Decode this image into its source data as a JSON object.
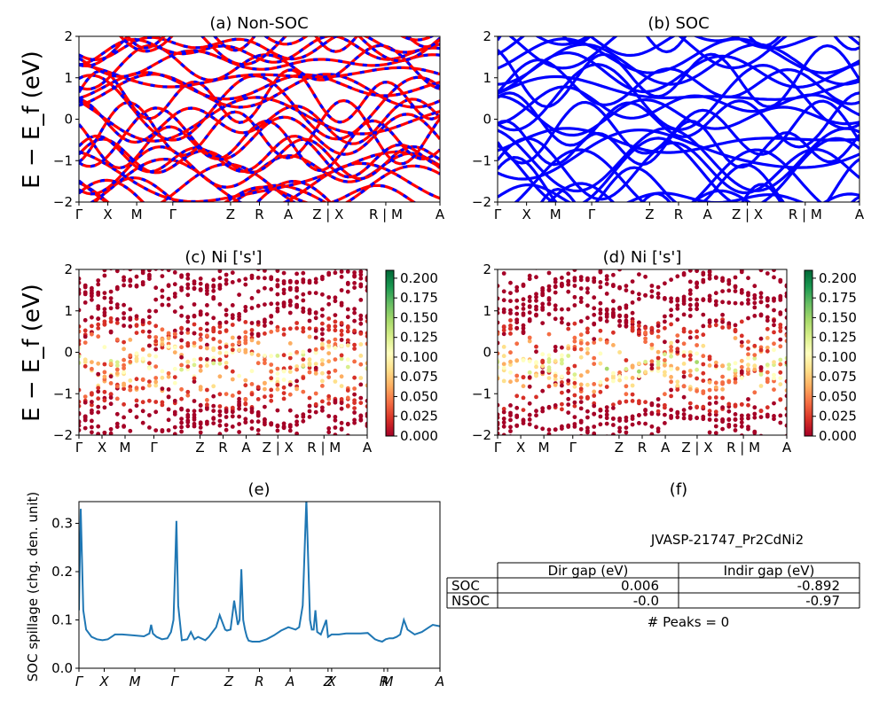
{
  "chart_data": [
    {
      "type": "line",
      "title": "(a) Non-SOC",
      "ylabel": "E − E_f (eV)",
      "ylim": [
        -2,
        2
      ],
      "yticks": [
        "−2",
        "−1",
        "0",
        "1",
        "2"
      ],
      "xtick_labels": [
        "Γ",
        "X",
        "M",
        "Γ",
        "Z",
        "R",
        "A",
        "Z | X",
        "R | M",
        "A"
      ],
      "xtick_positions": [
        0.0,
        0.08,
        0.16,
        0.26,
        0.42,
        0.5,
        0.58,
        0.69,
        0.85,
        1.0
      ],
      "series": [
        {
          "color": "#ff0000",
          "style": "solid"
        },
        {
          "color": "#0000ff",
          "style": "dashed"
        }
      ]
    },
    {
      "type": "line",
      "title": "(b) SOC",
      "ylim": [
        -2,
        2
      ],
      "yticks": [
        "−2",
        "−1",
        "0",
        "1",
        "2"
      ],
      "xtick_labels": [
        "Γ",
        "X",
        "M",
        "Γ",
        "Z",
        "R",
        "A",
        "Z | X",
        "R | M",
        "A"
      ],
      "xtick_positions": [
        0.0,
        0.08,
        0.16,
        0.26,
        0.42,
        0.5,
        0.58,
        0.69,
        0.85,
        1.0
      ],
      "series": [
        {
          "color": "#0000ff",
          "style": "solid"
        }
      ]
    },
    {
      "type": "scatter",
      "title": "(c)  Ni ['s']",
      "ylabel": "E − E_f (eV)",
      "ylim": [
        -2,
        2
      ],
      "yticks": [
        "−2",
        "−1",
        "0",
        "1",
        "2"
      ],
      "xtick_labels": [
        "Γ",
        "X",
        "M",
        "Γ",
        "Z",
        "R",
        "A",
        "Z | X",
        "R | M",
        "A"
      ],
      "xtick_positions": [
        0.0,
        0.08,
        0.16,
        0.26,
        0.42,
        0.5,
        0.58,
        0.69,
        0.85,
        1.0
      ],
      "colorbar": {
        "min": 0.0,
        "max": 0.2,
        "ticks": [
          "0.000",
          "0.025",
          "0.050",
          "0.075",
          "0.100",
          "0.125",
          "0.150",
          "0.175",
          "0.200"
        ],
        "colormap": "RdYlGn"
      }
    },
    {
      "type": "scatter",
      "title": "(d) Ni ['s']",
      "ylim": [
        -2,
        2
      ],
      "yticks": [
        "−2",
        "−1",
        "0",
        "1",
        "2"
      ],
      "xtick_labels": [
        "Γ",
        "X",
        "M",
        "Γ",
        "Z",
        "R",
        "A",
        "Z | X",
        "R | M",
        "A"
      ],
      "xtick_positions": [
        0.0,
        0.08,
        0.16,
        0.26,
        0.42,
        0.5,
        0.58,
        0.69,
        0.85,
        1.0
      ],
      "colorbar": {
        "min": 0.0,
        "max": 0.2,
        "ticks": [
          "0.000",
          "0.025",
          "0.050",
          "0.075",
          "0.100",
          "0.125",
          "0.150",
          "0.175",
          "0.200"
        ],
        "colormap": "RdYlGn"
      }
    },
    {
      "type": "line",
      "title": "(e)",
      "ylabel": "SOC spillage (chg. den. unit)",
      "ylim": [
        0.0,
        0.345
      ],
      "yticks": [
        "0.0",
        "0.1",
        "0.2",
        "0.3"
      ],
      "xtick_labels": [
        "Γ",
        "X",
        "M",
        "Γ",
        "Z",
        "R",
        "A",
        "Z",
        "X",
        "R",
        "M",
        "A"
      ],
      "xtick_positions": [
        0.0,
        0.07,
        0.155,
        0.265,
        0.415,
        0.5,
        0.585,
        0.69,
        0.7,
        0.845,
        0.855,
        1.0
      ],
      "x": [
        0.0,
        0.005,
        0.012,
        0.02,
        0.035,
        0.05,
        0.065,
        0.08,
        0.1,
        0.12,
        0.15,
        0.18,
        0.195,
        0.2,
        0.205,
        0.215,
        0.23,
        0.245,
        0.255,
        0.262,
        0.266,
        0.27,
        0.275,
        0.285,
        0.3,
        0.31,
        0.32,
        0.33,
        0.35,
        0.36,
        0.37,
        0.38,
        0.39,
        0.405,
        0.41,
        0.42,
        0.43,
        0.44,
        0.445,
        0.45,
        0.455,
        0.46,
        0.465,
        0.47,
        0.48,
        0.5,
        0.52,
        0.54,
        0.56,
        0.58,
        0.6,
        0.61,
        0.62,
        0.63,
        0.64,
        0.645,
        0.65,
        0.655,
        0.66,
        0.67,
        0.68,
        0.685,
        0.69,
        0.7,
        0.72,
        0.74,
        0.76,
        0.78,
        0.8,
        0.82,
        0.83,
        0.84,
        0.85,
        0.86,
        0.87,
        0.88,
        0.89,
        0.9,
        0.91,
        0.93,
        0.95,
        0.97,
        0.98,
        1.0
      ],
      "values": [
        0.12,
        0.33,
        0.12,
        0.08,
        0.065,
        0.06,
        0.058,
        0.06,
        0.07,
        0.07,
        0.068,
        0.066,
        0.072,
        0.09,
        0.072,
        0.065,
        0.06,
        0.062,
        0.075,
        0.1,
        0.2,
        0.305,
        0.13,
        0.058,
        0.06,
        0.075,
        0.06,
        0.065,
        0.058,
        0.065,
        0.075,
        0.085,
        0.11,
        0.08,
        0.078,
        0.08,
        0.14,
        0.09,
        0.1,
        0.205,
        0.1,
        0.08,
        0.065,
        0.057,
        0.055,
        0.055,
        0.06,
        0.068,
        0.078,
        0.085,
        0.08,
        0.085,
        0.13,
        0.35,
        0.1,
        0.08,
        0.08,
        0.12,
        0.075,
        0.07,
        0.09,
        0.1,
        0.065,
        0.07,
        0.07,
        0.072,
        0.072,
        0.072,
        0.073,
        0.06,
        0.057,
        0.055,
        0.06,
        0.062,
        0.062,
        0.065,
        0.07,
        0.1,
        0.08,
        0.07,
        0.075,
        0.085,
        0.09,
        0.087
      ],
      "series": [
        {
          "color": "#1f77b4"
        }
      ]
    },
    {
      "type": "table",
      "title": "(f)",
      "subtitle": "JVASP-21747_Pr2CdNi2",
      "columns": [
        "",
        "Dir gap (eV)",
        "Indir gap (eV)"
      ],
      "rows": [
        [
          "SOC",
          "0.006",
          "-0.892"
        ],
        [
          "NSOC",
          "-0.0",
          "-0.97"
        ]
      ],
      "footer": "# Peaks = 0"
    }
  ]
}
